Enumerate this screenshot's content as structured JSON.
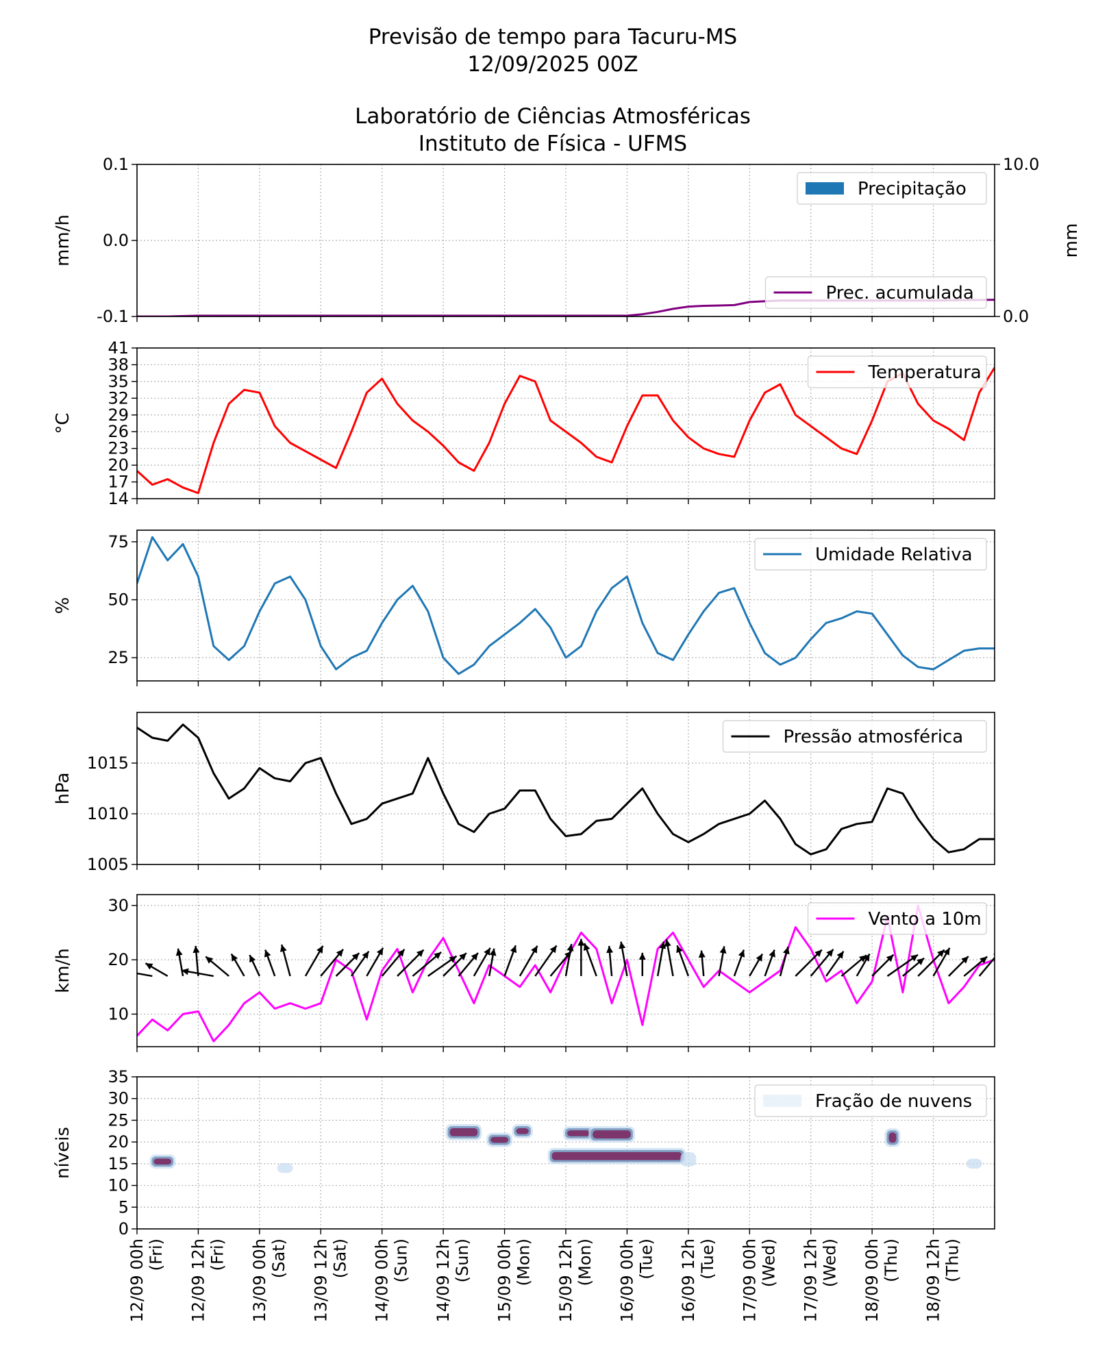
{
  "header": {
    "title_lines": [
      "Previsão de tempo para Tacuru-MS",
      "12/09/2025 00Z",
      "",
      "Laboratório de Ciências Atmosféricas",
      "Instituto de Física - UFMS"
    ]
  },
  "chart_data": [
    {
      "type": "line",
      "id": "precip",
      "ylabel": "mm/h",
      "ylim": [
        -0.1,
        0.1
      ],
      "yticks": [
        -0.1,
        0.0,
        0.1
      ],
      "ytick_labels": [
        "-0.1",
        "0.0",
        "0.1"
      ],
      "y2label": "mm",
      "y2lim": [
        0,
        10
      ],
      "y2ticks": [
        0,
        10
      ],
      "y2tick_labels": [
        "0.0",
        "10.0"
      ],
      "grid": true,
      "legend_placement": "upper-right and lower-right",
      "series": [
        {
          "name": "Precipitação",
          "kind": "bar",
          "color": "#1f77b4",
          "values": []
        },
        {
          "name": "Prec. acumulada",
          "kind": "line",
          "axis": "right",
          "color": "#800080",
          "x": [
            0,
            6,
            12,
            18,
            24,
            36,
            48,
            60,
            72,
            84,
            90,
            96,
            99,
            102,
            105,
            108,
            111,
            114,
            117,
            120,
            123,
            126,
            129,
            132,
            144,
            150,
            156,
            168
          ],
          "values": [
            0,
            0,
            0.05,
            0.05,
            0.05,
            0.05,
            0.05,
            0.05,
            0.05,
            0.05,
            0.05,
            0.05,
            0.15,
            0.3,
            0.5,
            0.65,
            0.7,
            0.72,
            0.75,
            0.95,
            1.0,
            1.05,
            1.05,
            1.05,
            1.05,
            1.05,
            1.05,
            1.1
          ]
        }
      ]
    },
    {
      "type": "line",
      "id": "temp",
      "ylabel": "°C",
      "ylim": [
        14,
        41
      ],
      "yticks": [
        14,
        17,
        20,
        23,
        26,
        29,
        32,
        35,
        38,
        41
      ],
      "ytick_labels": [
        "14",
        "17",
        "20",
        "23",
        "26",
        "29",
        "32",
        "35",
        "38",
        "41"
      ],
      "grid": true,
      "legend_placement": "upper-right",
      "series": [
        {
          "name": "Temperatura",
          "color": "#ff0000",
          "x": [
            0,
            3,
            6,
            9,
            12,
            15,
            18,
            21,
            24,
            27,
            30,
            33,
            36,
            39,
            42,
            45,
            48,
            51,
            54,
            57,
            60,
            63,
            66,
            69,
            72,
            75,
            78,
            81,
            84,
            87,
            90,
            93,
            96,
            99,
            102,
            105,
            108,
            111,
            114,
            117,
            120,
            123,
            126,
            129,
            132,
            135,
            138,
            141,
            144,
            147,
            150,
            153,
            156,
            159,
            162,
            165,
            168
          ],
          "values": [
            19,
            16.5,
            17.5,
            16,
            15,
            24,
            31,
            33.5,
            33,
            27,
            24,
            22.5,
            21,
            19.5,
            26,
            33,
            35.5,
            31,
            28,
            26,
            23.5,
            20.5,
            19,
            24,
            31,
            36,
            35,
            28,
            26,
            24,
            21.5,
            20.5,
            27,
            32.5,
            32.5,
            28,
            25,
            23,
            22,
            21.5,
            28,
            33,
            34.5,
            29,
            27,
            25,
            23,
            22,
            28,
            35,
            36.5,
            31,
            28,
            26.5,
            24.5,
            33,
            37.5
          ]
        }
      ]
    },
    {
      "type": "line",
      "id": "rh",
      "ylabel": "%",
      "ylim": [
        15,
        80
      ],
      "yticks": [
        25,
        50,
        75
      ],
      "ytick_labels": [
        "25",
        "50",
        "75"
      ],
      "grid": true,
      "legend_placement": "upper-right",
      "series": [
        {
          "name": "Umidade Relativa",
          "color": "#1f77b4",
          "x": [
            0,
            3,
            6,
            9,
            12,
            15,
            18,
            21,
            24,
            27,
            30,
            33,
            36,
            39,
            42,
            45,
            48,
            51,
            54,
            57,
            60,
            63,
            66,
            69,
            72,
            75,
            78,
            81,
            84,
            87,
            90,
            93,
            96,
            99,
            102,
            105,
            108,
            111,
            114,
            117,
            120,
            123,
            126,
            129,
            132,
            135,
            138,
            141,
            144,
            147,
            150,
            153,
            156,
            159,
            162,
            165,
            168
          ],
          "values": [
            57,
            77,
            67,
            74,
            60,
            30,
            24,
            30,
            45,
            57,
            60,
            50,
            30,
            20,
            25,
            28,
            40,
            50,
            56,
            45,
            25,
            18,
            22,
            30,
            35,
            40,
            46,
            38,
            25,
            30,
            45,
            55,
            60,
            40,
            27,
            24,
            35,
            45,
            53,
            55,
            40,
            27,
            22,
            25,
            33,
            40,
            42,
            45,
            44,
            35,
            26,
            21,
            20,
            24,
            28,
            29,
            29
          ]
        }
      ]
    },
    {
      "type": "line",
      "id": "pres",
      "ylabel": "hPa",
      "ylim": [
        1005,
        1020
      ],
      "yticks": [
        1005,
        1010,
        1015
      ],
      "ytick_labels": [
        "1005",
        "1010",
        "1015"
      ],
      "grid": true,
      "legend_placement": "upper-right",
      "series": [
        {
          "name": "Pressão atmosférica",
          "color": "#000000",
          "x": [
            0,
            3,
            6,
            9,
            12,
            15,
            18,
            21,
            24,
            27,
            30,
            33,
            36,
            39,
            42,
            45,
            48,
            51,
            54,
            57,
            60,
            63,
            66,
            69,
            72,
            75,
            78,
            81,
            84,
            87,
            90,
            93,
            96,
            99,
            102,
            105,
            108,
            111,
            114,
            117,
            120,
            123,
            126,
            129,
            132,
            135,
            138,
            141,
            144,
            147,
            150,
            153,
            156,
            159,
            162,
            165,
            168
          ],
          "values": [
            1018.5,
            1017.5,
            1017.2,
            1018.8,
            1017.5,
            1014,
            1011.5,
            1012.5,
            1014.5,
            1013.5,
            1013.2,
            1015,
            1015.5,
            1012,
            1009,
            1009.5,
            1011,
            1011.5,
            1012,
            1015.5,
            1012,
            1009,
            1008.2,
            1010,
            1010.5,
            1012.3,
            1012.3,
            1009.5,
            1007.8,
            1008,
            1009.3,
            1009.5,
            1011,
            1012.5,
            1010,
            1008,
            1007.2,
            1008,
            1009,
            1009.5,
            1010,
            1011.3,
            1009.5,
            1007,
            1006,
            1006.5,
            1008.5,
            1009,
            1009.2,
            1012.5,
            1012,
            1009.5,
            1007.5,
            1006.2,
            1006.5,
            1007.5,
            1007.5
          ]
        }
      ]
    },
    {
      "type": "line",
      "id": "wind",
      "ylabel": "km/h",
      "ylim": [
        4,
        32
      ],
      "yticks": [
        10,
        20,
        30
      ],
      "ytick_labels": [
        "10",
        "20",
        "30"
      ],
      "grid": true,
      "legend_placement": "upper-right",
      "series": [
        {
          "name": "Vento a 10m",
          "color": "#ff00ff",
          "x": [
            0,
            3,
            6,
            9,
            12,
            15,
            18,
            21,
            24,
            27,
            30,
            33,
            36,
            39,
            42,
            45,
            48,
            51,
            54,
            57,
            60,
            63,
            66,
            69,
            72,
            75,
            78,
            81,
            84,
            87,
            90,
            93,
            96,
            99,
            102,
            105,
            108,
            111,
            114,
            117,
            120,
            123,
            126,
            129,
            132,
            135,
            138,
            141,
            144,
            147,
            150,
            153,
            156,
            159,
            162,
            165,
            168
          ],
          "values": [
            6,
            9,
            7,
            10,
            10.5,
            5,
            8,
            12,
            14,
            11,
            12,
            11,
            12,
            20,
            18,
            9,
            18,
            22,
            14,
            20,
            24,
            18,
            12,
            19,
            17,
            15,
            19,
            14,
            20,
            25,
            22,
            12,
            20,
            8,
            22,
            25,
            20,
            15,
            18,
            16,
            14,
            16,
            18,
            26,
            22,
            16,
            18,
            12,
            16,
            28,
            14,
            30,
            20,
            12,
            15,
            19,
            20
          ]
        },
        {
          "name": "arrows",
          "kind": "quiver",
          "x": [
            0,
            3,
            6,
            9,
            12,
            15,
            18,
            21,
            24,
            27,
            30,
            33,
            36,
            39,
            42,
            45,
            48,
            51,
            54,
            57,
            60,
            63,
            66,
            69,
            72,
            75,
            78,
            81,
            84,
            87,
            90,
            93,
            96,
            99,
            102,
            105,
            108,
            111,
            114,
            117,
            120,
            123,
            126,
            129,
            132,
            135,
            138,
            141,
            144,
            147,
            150,
            153,
            156,
            159,
            162,
            165,
            168
          ],
          "dir": [
            180,
            170,
            150,
            100,
            95,
            170,
            140,
            120,
            115,
            110,
            105,
            60,
            50,
            45,
            55,
            60,
            50,
            45,
            40,
            35,
            45,
            50,
            60,
            80,
            70,
            60,
            55,
            50,
            80,
            90,
            110,
            95,
            100,
            90,
            80,
            100,
            110,
            95,
            80,
            70,
            60,
            70,
            75,
            45,
            50,
            55,
            40,
            60,
            45,
            35,
            40,
            45,
            60,
            45,
            40,
            50,
            55
          ],
          "mag": [
            1,
            1.1,
            1.1,
            1.2,
            1.3,
            1.4,
            1.3,
            1.1,
            1.0,
            1.2,
            1.4,
            1.5,
            1.5,
            1.4,
            1.3,
            1.4,
            1.5,
            1.6,
            1.6,
            1.5,
            1.4,
            1.3,
            1.4,
            1.2,
            1.4,
            1.5,
            1.6,
            1.4,
            1.4,
            1.6,
            1.5,
            1.3,
            1.5,
            1.0,
            1.5,
            1.6,
            1.4,
            1.1,
            1.3,
            1.2,
            1.1,
            1.2,
            1.3,
            1.6,
            1.5,
            1.3,
            1.4,
            1.1,
            1.3,
            1.6,
            1.2,
            1.6,
            1.4,
            1.2,
            1.3,
            1.4,
            1.5
          ]
        }
      ]
    },
    {
      "type": "heatmap",
      "id": "cloud",
      "ylabel": "níveis",
      "ylim": [
        0,
        35
      ],
      "yticks": [
        0,
        5,
        10,
        15,
        20,
        25,
        30,
        35
      ],
      "ytick_labels": [
        "0",
        "5",
        "10",
        "15",
        "20",
        "25",
        "30",
        "35"
      ],
      "grid": true,
      "legend_placement": "upper-right",
      "series": [
        {
          "name": "Fração de nuvens",
          "color": "#deebf7",
          "blobs": [
            {
              "x0": 3,
              "x1": 7,
              "y0": 14.5,
              "y1": 16.5,
              "level": 0.9
            },
            {
              "x0": 28,
              "x1": 30,
              "y0": 13.5,
              "y1": 14.5,
              "level": 0.2
            },
            {
              "x0": 61,
              "x1": 67,
              "y0": 21,
              "y1": 23.5,
              "level": 0.9
            },
            {
              "x0": 69,
              "x1": 73,
              "y0": 19.5,
              "y1": 21.5,
              "level": 0.8
            },
            {
              "x0": 74,
              "x1": 77,
              "y0": 21.5,
              "y1": 23.5,
              "level": 0.8
            },
            {
              "x0": 84,
              "x1": 89,
              "y0": 21,
              "y1": 23,
              "level": 0.7
            },
            {
              "x0": 89,
              "x1": 97,
              "y0": 20.5,
              "y1": 23,
              "level": 0.9
            },
            {
              "x0": 81,
              "x1": 107,
              "y0": 15.5,
              "y1": 18,
              "level": 0.9
            },
            {
              "x0": 107,
              "x1": 109,
              "y0": 15,
              "y1": 17,
              "level": 0.2
            },
            {
              "x0": 147,
              "x1": 149,
              "y0": 19.5,
              "y1": 22.5,
              "level": 0.6
            },
            {
              "x0": 163,
              "x1": 165,
              "y0": 14.5,
              "y1": 15.5,
              "level": 0.2
            }
          ]
        }
      ]
    }
  ],
  "xaxis": {
    "xlim": [
      0,
      168
    ],
    "tick_positions": [
      0,
      12,
      24,
      36,
      48,
      60,
      72,
      84,
      96,
      108,
      120,
      132,
      144,
      156
    ],
    "tick_labels": [
      [
        "12/09 00h",
        "(Fri)"
      ],
      [
        "12/09 12h",
        "(Fri)"
      ],
      [
        "13/09 00h",
        "(Sat)"
      ],
      [
        "13/09 12h",
        "(Sat)"
      ],
      [
        "14/09 00h",
        "(Sun)"
      ],
      [
        "14/09 12h",
        "(Sun)"
      ],
      [
        "15/09 00h",
        "(Mon)"
      ],
      [
        "15/09 12h",
        "(Mon)"
      ],
      [
        "16/09 00h",
        "(Tue)"
      ],
      [
        "16/09 12h",
        "(Tue)"
      ],
      [
        "17/09 00h",
        "(Wed)"
      ],
      [
        "17/09 12h",
        "(Wed)"
      ],
      [
        "18/09 00h",
        "(Thu)"
      ],
      [
        "18/09 12h",
        "(Thu)"
      ]
    ]
  }
}
